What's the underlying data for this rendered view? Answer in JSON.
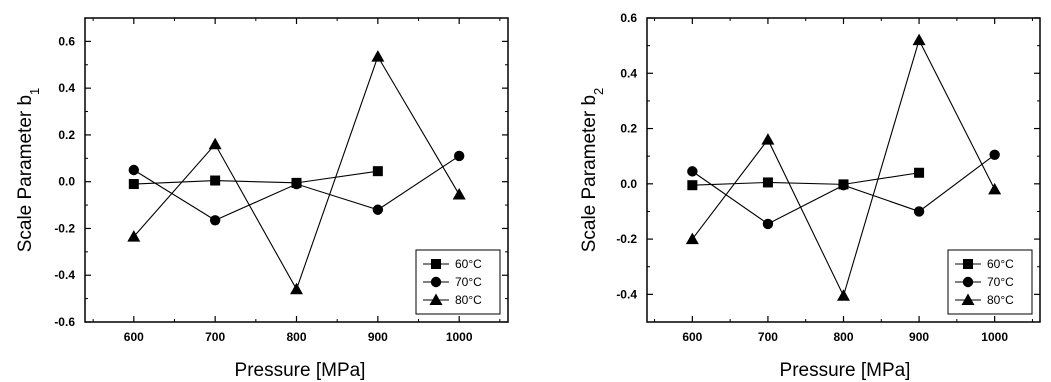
{
  "chart_data": [
    {
      "type": "line",
      "xlabel": "Pressure [MPa]",
      "ylabel": "Scale Parameter b",
      "ylabel_subscript": "1",
      "x": [
        600,
        700,
        800,
        900,
        1000
      ],
      "xticks": [
        600,
        700,
        800,
        900,
        1000
      ],
      "xlim": [
        540,
        1060
      ],
      "yticks": [
        -0.6,
        -0.4,
        -0.2,
        0.0,
        0.2,
        0.4,
        0.6
      ],
      "ytick_labels": [
        "-0.6",
        "-0.4",
        "-0.2",
        "0.0",
        "0.2",
        "0.4",
        "0.6"
      ],
      "ylim": [
        -0.6,
        0.7
      ],
      "legend_position": "bottom-right",
      "series": [
        {
          "name": "60°C",
          "marker": "square",
          "points": [
            [
              600,
              -0.01
            ],
            [
              700,
              0.005
            ],
            [
              800,
              -0.005
            ],
            [
              900,
              0.045
            ]
          ]
        },
        {
          "name": "70°C",
          "marker": "circle",
          "points": [
            [
              600,
              0.05
            ],
            [
              700,
              -0.165
            ],
            [
              800,
              -0.01
            ],
            [
              900,
              -0.12
            ],
            [
              1000,
              0.11
            ]
          ]
        },
        {
          "name": "80°C",
          "marker": "triangle",
          "points": [
            [
              600,
              -0.235
            ],
            [
              700,
              0.16
            ],
            [
              800,
              -0.46
            ],
            [
              900,
              0.535
            ],
            [
              1000,
              -0.055
            ]
          ]
        }
      ]
    },
    {
      "type": "line",
      "xlabel": "Pressure [MPa]",
      "ylabel": "Scale Parameter b",
      "ylabel_subscript": "2",
      "x": [
        600,
        700,
        800,
        900,
        1000
      ],
      "xticks": [
        600,
        700,
        800,
        900,
        1000
      ],
      "xlim": [
        540,
        1060
      ],
      "yticks": [
        -0.4,
        -0.2,
        0.0,
        0.2,
        0.4,
        0.6
      ],
      "ytick_labels": [
        "-0.4",
        "-0.2",
        "0.0",
        "0.2",
        "0.4",
        "0.6"
      ],
      "ylim": [
        -0.5,
        0.6
      ],
      "legend_position": "bottom-right",
      "series": [
        {
          "name": "60°C",
          "marker": "square",
          "points": [
            [
              600,
              -0.005
            ],
            [
              700,
              0.005
            ],
            [
              800,
              -0.002
            ],
            [
              900,
              0.04
            ]
          ]
        },
        {
          "name": "70°C",
          "marker": "circle",
          "points": [
            [
              600,
              0.045
            ],
            [
              700,
              -0.145
            ],
            [
              800,
              -0.005
            ],
            [
              900,
              -0.1
            ],
            [
              1000,
              0.105
            ]
          ]
        },
        {
          "name": "80°C",
          "marker": "triangle",
          "points": [
            [
              600,
              -0.2
            ],
            [
              700,
              0.16
            ],
            [
              800,
              -0.405
            ],
            [
              900,
              0.52
            ],
            [
              1000,
              -0.02
            ]
          ]
        }
      ]
    }
  ]
}
